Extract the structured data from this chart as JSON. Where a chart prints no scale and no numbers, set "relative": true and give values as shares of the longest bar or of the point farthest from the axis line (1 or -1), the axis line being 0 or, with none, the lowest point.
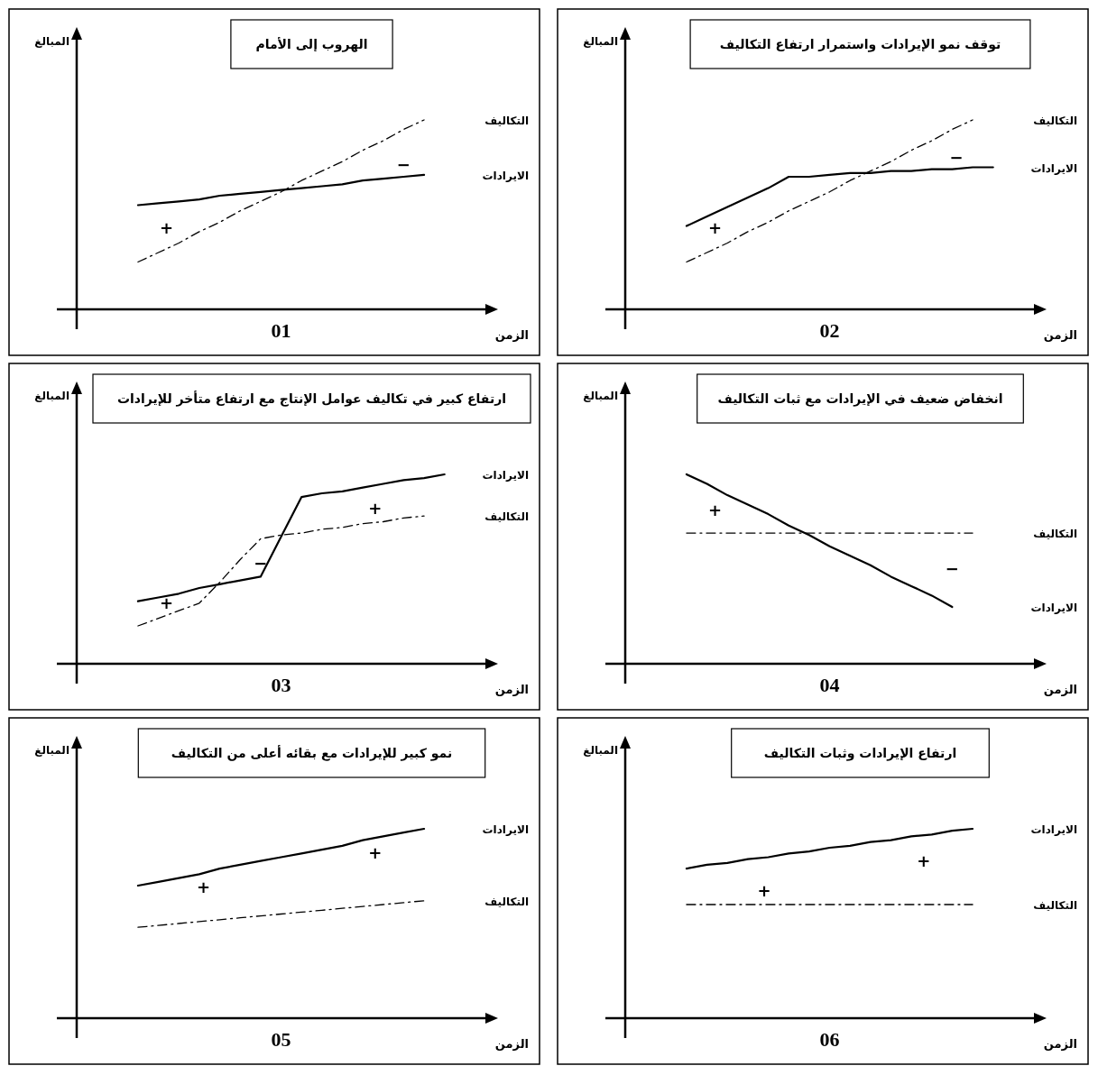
{
  "chart_data": [
    {
      "type": "line",
      "title": "الهروب إلى الأمام",
      "subtitle": "01",
      "xlabel": "الزمن",
      "ylabel": "المبالغ",
      "relative": true,
      "categories": [
        null,
        null,
        null,
        null,
        null,
        null,
        null,
        null,
        null,
        null,
        null,
        null,
        null,
        null,
        null,
        null,
        null
      ],
      "series": [
        {
          "name": "الايرادات",
          "color": "#000000",
          "line_style": "solid",
          "values": [
            null,
            0.55,
            0.56,
            0.57,
            0.58,
            0.6,
            0.61,
            0.62,
            0.63,
            0.64,
            0.65,
            0.66,
            0.68,
            0.69,
            0.7,
            0.71,
            null
          ]
        },
        {
          "name": "التكاليف",
          "color": "#000000",
          "line_style": "dashed",
          "values": [
            null,
            0.25,
            0.3,
            0.35,
            0.41,
            0.46,
            0.52,
            0.57,
            0.62,
            0.68,
            0.73,
            0.78,
            0.84,
            0.89,
            0.95,
            1,
            null
          ]
        }
      ],
      "annotations": [
        "+",
        "−"
      ]
    },
    {
      "type": "line",
      "title": "توقف نمو الإيرادات واستمرار ارتفاع التكاليف",
      "subtitle": "02",
      "xlabel": "الزمن",
      "ylabel": "المبالغ",
      "relative": true,
      "categories": [
        null,
        null,
        null,
        null,
        null,
        null,
        null,
        null,
        null,
        null,
        null,
        null,
        null,
        null,
        null,
        null,
        null
      ],
      "series": [
        {
          "name": "الايرادات",
          "color": "#000000",
          "line_style": "solid",
          "values": [
            null,
            0.44,
            0.49,
            0.54,
            0.59,
            0.64,
            0.7,
            0.7,
            0.71,
            0.72,
            0.72,
            0.73,
            0.73,
            0.74,
            0.74,
            0.75,
            0.75
          ]
        },
        {
          "name": "التكاليف",
          "color": "#000000",
          "line_style": "dashed",
          "values": [
            null,
            0.25,
            0.3,
            0.35,
            0.41,
            0.46,
            0.52,
            0.57,
            0.62,
            0.68,
            0.73,
            0.78,
            0.84,
            0.89,
            0.95,
            1,
            null
          ]
        }
      ],
      "annotations": [
        "+",
        "−"
      ]
    },
    {
      "type": "line",
      "title": "ارتفاع كبير في تكاليف عوامل الإنتاج مع ارتفاع متأخر للإيرادات",
      "subtitle": "03",
      "xlabel": "الزمن",
      "ylabel": "المبالغ",
      "relative": true,
      "categories": [
        null,
        null,
        null,
        null,
        null,
        null,
        null,
        null,
        null,
        null,
        null,
        null,
        null,
        null,
        null,
        null,
        null
      ],
      "series": [
        {
          "name": "الايرادات",
          "color": "#000000",
          "line_style": "solid",
          "values": [
            null,
            0.33,
            0.35,
            0.37,
            0.4,
            0.42,
            0.44,
            0.46,
            0.67,
            0.88,
            0.9,
            0.91,
            0.93,
            0.95,
            0.97,
            0.98,
            1
          ]
        },
        {
          "name": "التكاليف",
          "color": "#000000",
          "line_style": "dashed",
          "values": [
            null,
            0.2,
            0.24,
            0.28,
            0.32,
            0.43,
            0.55,
            0.66,
            0.68,
            0.69,
            0.71,
            0.72,
            0.74,
            0.75,
            0.77,
            0.78,
            null
          ]
        }
      ],
      "annotations": [
        "+",
        "−",
        "+"
      ]
    },
    {
      "type": "line",
      "title": "انخفاض ضعيف في الإيرادات مع ثبات التكاليف",
      "subtitle": "04",
      "xlabel": "الزمن",
      "ylabel": "المبالغ",
      "relative": true,
      "categories": [
        null,
        null,
        null,
        null,
        null,
        null,
        null,
        null,
        null,
        null,
        null,
        null,
        null,
        null,
        null,
        null,
        null
      ],
      "series": [
        {
          "name": "الايرادات",
          "color": "#000000",
          "line_style": "solid",
          "values": [
            null,
            1,
            0.95,
            0.89,
            0.84,
            0.79,
            0.73,
            0.68,
            0.62,
            0.57,
            0.52,
            0.46,
            0.41,
            0.36,
            0.3,
            null,
            null
          ]
        },
        {
          "name": "التكاليف",
          "color": "#000000",
          "line_style": "dashed",
          "values": [
            null,
            0.69,
            0.69,
            0.69,
            0.69,
            0.69,
            0.69,
            0.69,
            0.69,
            0.69,
            0.69,
            0.69,
            0.69,
            0.69,
            0.69,
            0.69,
            null
          ]
        }
      ],
      "annotations": [
        "+",
        "−"
      ]
    },
    {
      "type": "line",
      "title": "نمو كبير للإيرادات مع بقائه أعلى من التكاليف",
      "subtitle": "05",
      "xlabel": "الزمن",
      "ylabel": "المبالغ",
      "relative": true,
      "categories": [
        null,
        null,
        null,
        null,
        null,
        null,
        null,
        null,
        null,
        null,
        null,
        null,
        null,
        null,
        null,
        null,
        null
      ],
      "series": [
        {
          "name": "الايرادات",
          "color": "#000000",
          "line_style": "solid",
          "values": [
            null,
            0.7,
            0.72,
            0.74,
            0.76,
            0.79,
            0.81,
            0.83,
            0.85,
            0.87,
            0.89,
            0.91,
            0.94,
            0.96,
            0.98,
            1,
            null
          ]
        },
        {
          "name": "التكاليف",
          "color": "#000000",
          "line_style": "dashed",
          "values": [
            null,
            0.48,
            0.49,
            0.5,
            0.51,
            0.52,
            0.53,
            0.54,
            0.55,
            0.56,
            0.57,
            0.58,
            0.59,
            0.6,
            0.61,
            0.62,
            null
          ]
        }
      ],
      "annotations": [
        "+",
        "+"
      ]
    },
    {
      "type": "line",
      "title": "ارتفاع الإيرادات وثبات التكاليف",
      "subtitle": "06",
      "xlabel": "الزمن",
      "ylabel": "المبالغ",
      "relative": true,
      "categories": [
        null,
        null,
        null,
        null,
        null,
        null,
        null,
        null,
        null,
        null,
        null,
        null,
        null,
        null,
        null,
        null,
        null
      ],
      "series": [
        {
          "name": "الايرادات",
          "color": "#000000",
          "line_style": "solid",
          "values": [
            null,
            0.79,
            0.81,
            0.82,
            0.84,
            0.85,
            0.87,
            0.88,
            0.9,
            0.91,
            0.93,
            0.94,
            0.96,
            0.97,
            0.99,
            1,
            null
          ]
        },
        {
          "name": "التكاليف",
          "color": "#000000",
          "line_style": "dashed",
          "values": [
            null,
            0.6,
            0.6,
            0.6,
            0.6,
            0.6,
            0.6,
            0.6,
            0.6,
            0.6,
            0.6,
            0.6,
            0.6,
            0.6,
            0.6,
            0.6,
            null
          ]
        }
      ],
      "annotations": [
        "+",
        "+"
      ]
    }
  ]
}
